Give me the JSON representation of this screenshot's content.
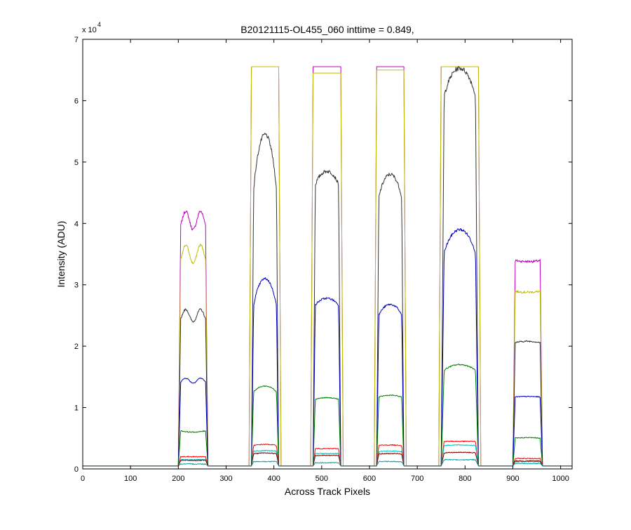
{
  "chart_data": {
    "type": "line",
    "title": "B20121115-OL455_060 inttime = 0.849,",
    "xlabel": "Across Track Pixels",
    "ylabel": "Intensity (ADU)",
    "xlim": [
      0,
      1024
    ],
    "ylim": [
      0,
      70000
    ],
    "xticks": [
      0,
      100,
      200,
      300,
      400,
      500,
      600,
      700,
      800,
      900,
      1000
    ],
    "yticks": [
      0,
      10000,
      20000,
      30000,
      40000,
      50000,
      60000,
      70000
    ],
    "xtick_labels": [
      "0",
      "100",
      "200",
      "300",
      "400",
      "500",
      "600",
      "700",
      "800",
      "900",
      "1000"
    ],
    "ytick_labels": [
      "0",
      "1",
      "2",
      "3",
      "4",
      "5",
      "6",
      "7"
    ],
    "y_exponent_label": "x 10",
    "y_exponent": "4",
    "grid": false,
    "baseline": 500,
    "bands": [
      {
        "x0": 200,
        "x1": 262
      },
      {
        "x0": 353,
        "x1": 410
      },
      {
        "x0": 482,
        "x1": 540
      },
      {
        "x0": 615,
        "x1": 672
      },
      {
        "x0": 750,
        "x1": 828
      },
      {
        "x0": 900,
        "x1": 962
      }
    ],
    "series": [
      {
        "color": "#bf00bf",
        "peaks": [
          {
            "shape": "double",
            "edge": 42000,
            "dip": 39000
          },
          {
            "shape": "sat",
            "level": 65535
          },
          {
            "shape": "sat",
            "level": 65535
          },
          {
            "shape": "sat",
            "level": 65535
          },
          {
            "shape": "sat",
            "level": 65535
          },
          {
            "shape": "flat",
            "edge": 34000,
            "center": 33800
          }
        ]
      },
      {
        "color": "#bfbf00",
        "peaks": [
          {
            "shape": "double",
            "edge": 36500,
            "dip": 33500
          },
          {
            "shape": "sat",
            "level": 65535
          },
          {
            "shape": "sat",
            "level": 64500
          },
          {
            "shape": "sat",
            "level": 65000
          },
          {
            "shape": "sat",
            "level": 65535
          },
          {
            "shape": "flat",
            "edge": 29000,
            "center": 28800
          }
        ]
      },
      {
        "color": "#333333",
        "peaks": [
          {
            "shape": "double",
            "edge": 26000,
            "dip": 24000
          },
          {
            "shape": "dome",
            "edge": 40000,
            "center": 54500
          },
          {
            "shape": "dome",
            "edge": 45000,
            "center": 48500
          },
          {
            "shape": "dome",
            "edge": 42000,
            "center": 48000
          },
          {
            "shape": "dome",
            "edge": 58000,
            "center": 65300
          },
          {
            "shape": "flat",
            "edge": 20500,
            "center": 20800
          }
        ]
      },
      {
        "color": "#0000bf",
        "peaks": [
          {
            "shape": "double",
            "edge": 14800,
            "dip": 14000
          },
          {
            "shape": "dome",
            "edge": 24000,
            "center": 31000
          },
          {
            "shape": "dome",
            "edge": 26000,
            "center": 27800
          },
          {
            "shape": "dome",
            "edge": 24000,
            "center": 26800
          },
          {
            "shape": "dome",
            "edge": 33000,
            "center": 39000
          },
          {
            "shape": "flat",
            "edge": 11700,
            "center": 11800
          }
        ]
      },
      {
        "color": "#007f00",
        "peaks": [
          {
            "shape": "flat",
            "edge": 6300,
            "center": 6000
          },
          {
            "shape": "dome",
            "edge": 12000,
            "center": 13500
          },
          {
            "shape": "dome",
            "edge": 11200,
            "center": 11600
          },
          {
            "shape": "dome",
            "edge": 11500,
            "center": 12000
          },
          {
            "shape": "dome",
            "edge": 15500,
            "center": 17000
          },
          {
            "shape": "flat",
            "edge": 5000,
            "center": 5100
          }
        ]
      },
      {
        "color": "#ff0000",
        "peaks": [
          {
            "shape": "flat",
            "edge": 2000,
            "center": 2000
          },
          {
            "shape": "dome",
            "edge": 3700,
            "center": 4000
          },
          {
            "shape": "flat",
            "edge": 3300,
            "center": 3300
          },
          {
            "shape": "flat",
            "edge": 3800,
            "center": 3900
          },
          {
            "shape": "flat",
            "edge": 4500,
            "center": 4500
          },
          {
            "shape": "flat",
            "edge": 1700,
            "center": 1700
          }
        ]
      },
      {
        "color": "#00bfbf",
        "peaks": [
          {
            "shape": "flat",
            "edge": 1500,
            "center": 1500
          },
          {
            "shape": "dome",
            "edge": 2800,
            "center": 3000
          },
          {
            "shape": "flat",
            "edge": 2500,
            "center": 2500
          },
          {
            "shape": "flat",
            "edge": 2800,
            "center": 2900
          },
          {
            "shape": "flat",
            "edge": 3800,
            "center": 3900
          },
          {
            "shape": "flat",
            "edge": 1200,
            "center": 1200
          }
        ]
      },
      {
        "color": "#7f0000",
        "peaks": [
          {
            "shape": "flat",
            "edge": 1400,
            "center": 1400
          },
          {
            "shape": "dome",
            "edge": 2400,
            "center": 2600
          },
          {
            "shape": "flat",
            "edge": 2200,
            "center": 2200
          },
          {
            "shape": "flat",
            "edge": 2400,
            "center": 2500
          },
          {
            "shape": "flat",
            "edge": 2600,
            "center": 2700
          },
          {
            "shape": "flat",
            "edge": 1300,
            "center": 1300
          }
        ]
      },
      {
        "color": "#00a0a0",
        "peaks": [
          {
            "shape": "flat",
            "edge": 800,
            "center": 800
          },
          {
            "shape": "flat",
            "edge": 1200,
            "center": 1200
          },
          {
            "shape": "flat",
            "edge": 1000,
            "center": 1000
          },
          {
            "shape": "flat",
            "edge": 1200,
            "center": 1200
          },
          {
            "shape": "flat",
            "edge": 1500,
            "center": 1500
          },
          {
            "shape": "flat",
            "edge": 900,
            "center": 900
          }
        ]
      }
    ]
  }
}
